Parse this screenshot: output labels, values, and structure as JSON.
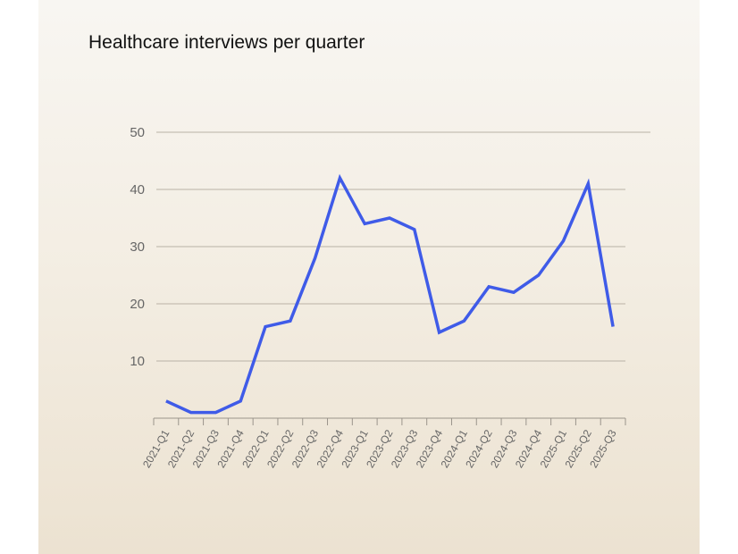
{
  "chart_data": {
    "type": "line",
    "title": "Healthcare interviews per quarter",
    "xlabel": "",
    "ylabel": "",
    "ylim": [
      0,
      50
    ],
    "yticks": [
      10,
      20,
      30,
      40,
      50
    ],
    "grid": "horizontal",
    "categories": [
      "2021-Q1",
      "2021-Q2",
      "2021-Q3",
      "2021-Q4",
      "2022-Q1",
      "2022-Q2",
      "2022-Q3",
      "2022-Q4",
      "2023-Q1",
      "2023-Q2",
      "2023-Q3",
      "2023-Q4",
      "2024-Q1",
      "2024-Q2",
      "2024-Q3",
      "2024-Q4",
      "2025-Q1",
      "2025-Q2",
      "2025-Q3"
    ],
    "series": [
      {
        "name": "Healthcare interviews",
        "color": "#3f5be8",
        "values": [
          3,
          1,
          1,
          3,
          16,
          17,
          28,
          42,
          34,
          35,
          33,
          15,
          17,
          23,
          22,
          25,
          31,
          41,
          16
        ]
      }
    ]
  }
}
